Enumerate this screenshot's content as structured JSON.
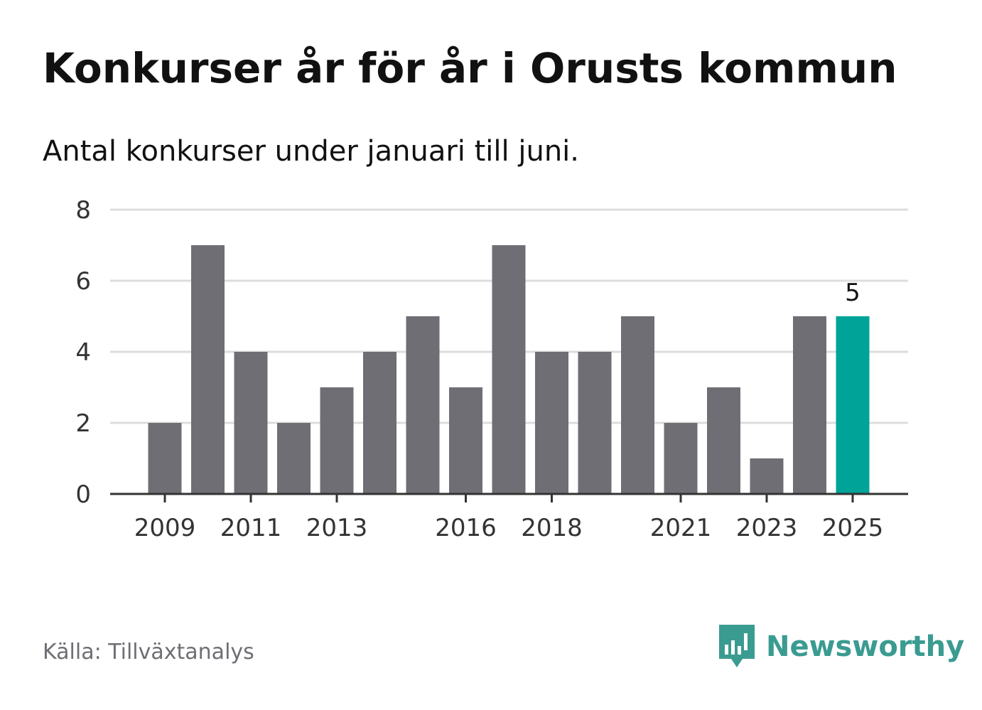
{
  "header": {
    "title": "Konkurser år för år i Orusts kommun",
    "subtitle": "Antal konkurser under januari till juni."
  },
  "footer": {
    "source": "Källa: Tillväxtanalys",
    "brand": "Newsworthy"
  },
  "colors": {
    "bar": "#6f6e74",
    "highlight": "#00a398",
    "grid": "#dddddd",
    "axis": "#333333",
    "brand": "#3a9b91"
  },
  "chart_data": {
    "type": "bar",
    "categories": [
      "2009",
      "2010",
      "2011",
      "2012",
      "2013",
      "2014",
      "2015",
      "2016",
      "2017",
      "2018",
      "2019",
      "2020",
      "2021",
      "2022",
      "2023",
      "2024",
      "2025"
    ],
    "values": [
      2,
      7,
      4,
      2,
      3,
      4,
      5,
      3,
      7,
      4,
      4,
      5,
      2,
      3,
      1,
      5,
      5
    ],
    "x_tick_labels": [
      "2009",
      "2011",
      "2013",
      "2016",
      "2018",
      "2021",
      "2023",
      "2025"
    ],
    "y_ticks": [
      0,
      2,
      4,
      6,
      8
    ],
    "ylim": [
      0,
      8
    ],
    "highlight": {
      "category": "2025",
      "label": "5"
    },
    "grid": true,
    "xlabel": "",
    "ylabel": ""
  }
}
